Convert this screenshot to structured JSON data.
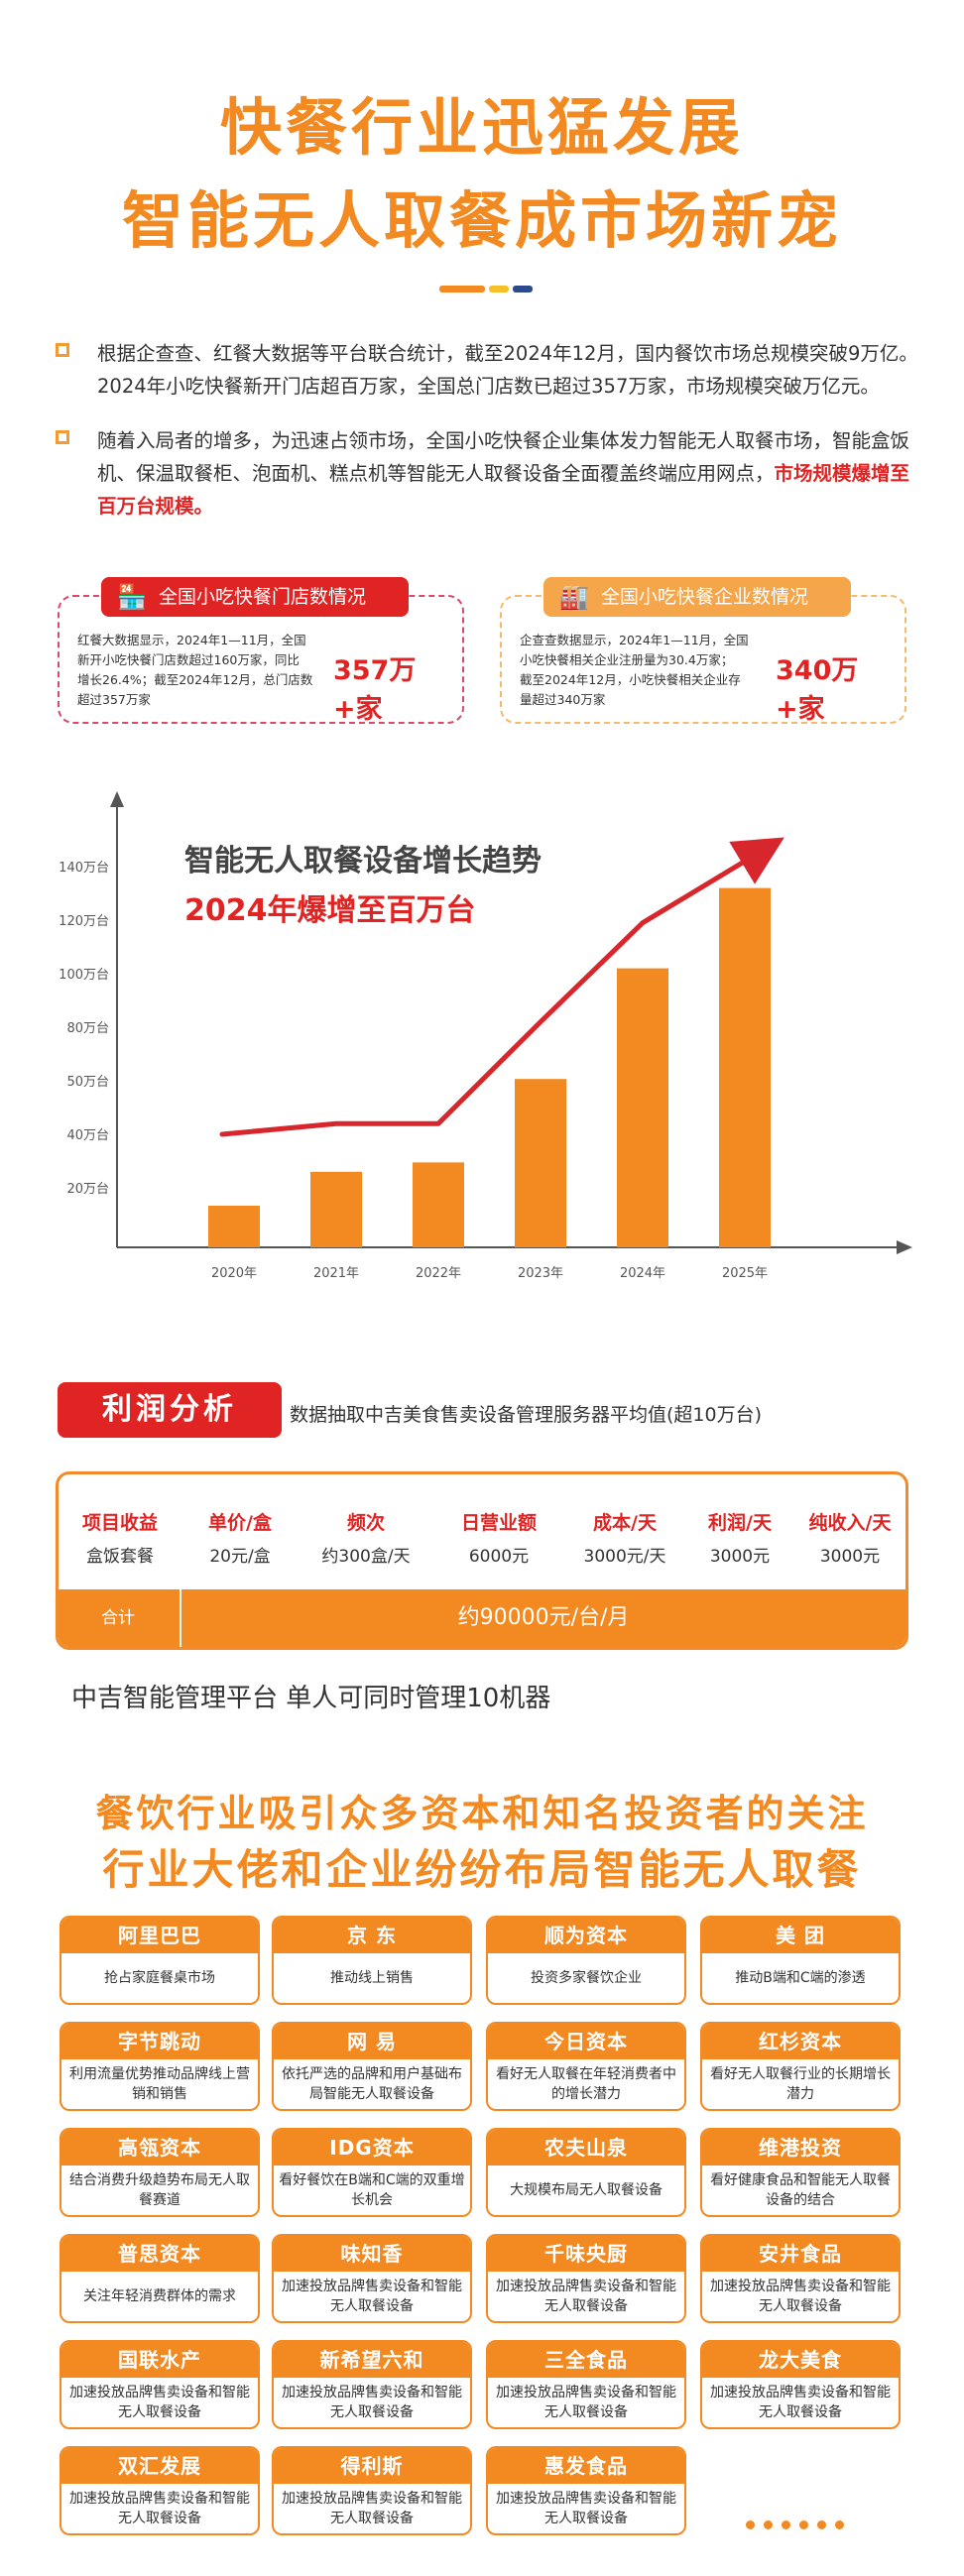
{
  "header": {
    "title_line1": "快餐行业迅猛发展",
    "title_line2": "智能无人取餐成市场新宠",
    "bar_colors": [
      "#f28a21",
      "#f5c02a",
      "#2e4a8c"
    ]
  },
  "bullets": [
    {
      "text": "根据企查查、红餐大数据等平台联合统计，截至2024年12月，国内餐饮市场总规模突破9万亿。2024年小吃快餐新开门店超百万家，全国总门店数已超过357万家，市场规模突破万亿元。",
      "highlight": ""
    },
    {
      "text": "随着入局者的增多，为迅速占领市场，全国小吃快餐企业集体发力智能无人取餐市场，智能盒饭机、保温取餐柜、泡面机、糕点机等智能无人取餐设备全面覆盖终端应用网点，",
      "highlight": "市场规模爆增至百万台规模。"
    }
  ],
  "stat_cards": [
    {
      "tag": "全国小吃快餐门店数情况",
      "icon": "shop-icon",
      "desc_lines": [
        "红餐大数据显示，2024年1—11月，全国",
        "新开小吃快餐门店数超过160万家，同比",
        "增长26.4%；截至2024年12月，总门店数",
        "超过357万家"
      ],
      "value": "357万+家",
      "color": "#e02424"
    },
    {
      "tag": "全国小吃快餐企业数情况",
      "icon": "factory-icon",
      "desc_lines": [
        "企查查数据显示，2024年1—11月，全国",
        "小吃快餐相关企业注册量为30.4万家；",
        "截至2024年12月，小吃快餐相关企业存",
        "量超过340万家"
      ],
      "value": "340万+家",
      "color": "#f5a54a"
    }
  ],
  "chart_data": {
    "type": "bar",
    "title": "智能无人取餐设备增长趋势",
    "subtitle": "2024年爆增至百万台",
    "categories": [
      "2020年",
      "2021年",
      "2022年",
      "2023年",
      "2024年",
      "2025年"
    ],
    "values": [
      14,
      26,
      29.5,
      51,
      102,
      132
    ],
    "trend": [
      40,
      42,
      42,
      82,
      119,
      142
    ],
    "yticks": [
      20,
      40,
      50,
      80,
      100,
      120,
      140
    ],
    "ytick_labels": [
      "20万台",
      "40万台",
      "50万台",
      "80万台",
      "100万台",
      "120万台",
      "140万台"
    ],
    "bar_color": "#f28a21",
    "line_color": "#d8262d",
    "xlabel": "",
    "ylabel": ""
  },
  "profit": {
    "badge": "利润分析",
    "subtitle": "数据抽取中吉美食售卖设备管理服务器平均值(超10万台)",
    "columns": [
      {
        "h": "项目收益",
        "v": "盒饭套餐"
      },
      {
        "h": "单价/盒",
        "v": "20元/盒"
      },
      {
        "h": "频次",
        "v": "约300盒/天"
      },
      {
        "h": "日营业额",
        "v": "6000元"
      },
      {
        "h": "成本/天",
        "v": "3000元/天"
      },
      {
        "h": "利润/天",
        "v": "3000元"
      },
      {
        "h": "纯收入/天",
        "v": "3000元"
      }
    ],
    "total_label": "合计",
    "total_value": "约90000元/台/月",
    "management": "中吉智能管理平台 单人可同时管理10机器"
  },
  "investors": {
    "title_line1": "餐饮行业吸引众多资本和知名投资者的关注",
    "title_line2": "行业大佬和企业纷纷布局智能无人取餐",
    "items": [
      {
        "name": "阿里巴巴",
        "desc": "抢占家庭餐桌市场"
      },
      {
        "name": "京 东",
        "desc": "推动线上销售"
      },
      {
        "name": "顺为资本",
        "desc": "投资多家餐饮企业"
      },
      {
        "name": "美 团",
        "desc": "推动B端和C端的渗透"
      },
      {
        "name": "字节跳动",
        "desc": "利用流量优势推动品牌线上营销和销售"
      },
      {
        "name": "网 易",
        "desc": "依托严选的品牌和用户基础布局智能无人取餐设备"
      },
      {
        "name": "今日资本",
        "desc": "看好无人取餐在年轻消费者中的增长潜力"
      },
      {
        "name": "红杉资本",
        "desc": "看好无人取餐行业的长期增长潜力"
      },
      {
        "name": "高瓴资本",
        "desc": "结合消费升级趋势布局无人取餐赛道"
      },
      {
        "name": "IDG资本",
        "desc": "看好餐饮在B端和C端的双重增长机会"
      },
      {
        "name": "农夫山泉",
        "desc": "大规模布局无人取餐设备"
      },
      {
        "name": "维港投资",
        "desc": "看好健康食品和智能无人取餐设备的结合"
      },
      {
        "name": "普思资本",
        "desc": "关注年轻消费群体的需求"
      },
      {
        "name": "味知香",
        "desc": "加速投放品牌售卖设备和智能无人取餐设备"
      },
      {
        "name": "千味央厨",
        "desc": "加速投放品牌售卖设备和智能无人取餐设备"
      },
      {
        "name": "安井食品",
        "desc": "加速投放品牌售卖设备和智能无人取餐设备"
      },
      {
        "name": "国联水产",
        "desc": "加速投放品牌售卖设备和智能无人取餐设备"
      },
      {
        "name": "新希望六和",
        "desc": "加速投放品牌售卖设备和智能无人取餐设备"
      },
      {
        "name": "三全食品",
        "desc": "加速投放品牌售卖设备和智能无人取餐设备"
      },
      {
        "name": "龙大美食",
        "desc": "加速投放品牌售卖设备和智能无人取餐设备"
      },
      {
        "name": "双汇发展",
        "desc": "加速投放品牌售卖设备和智能无人取餐设备"
      },
      {
        "name": "得利斯",
        "desc": "加速投放品牌售卖设备和智能无人取餐设备"
      },
      {
        "name": "惠发食品",
        "desc": "加速投放品牌售卖设备和智能无人取餐设备"
      }
    ]
  }
}
